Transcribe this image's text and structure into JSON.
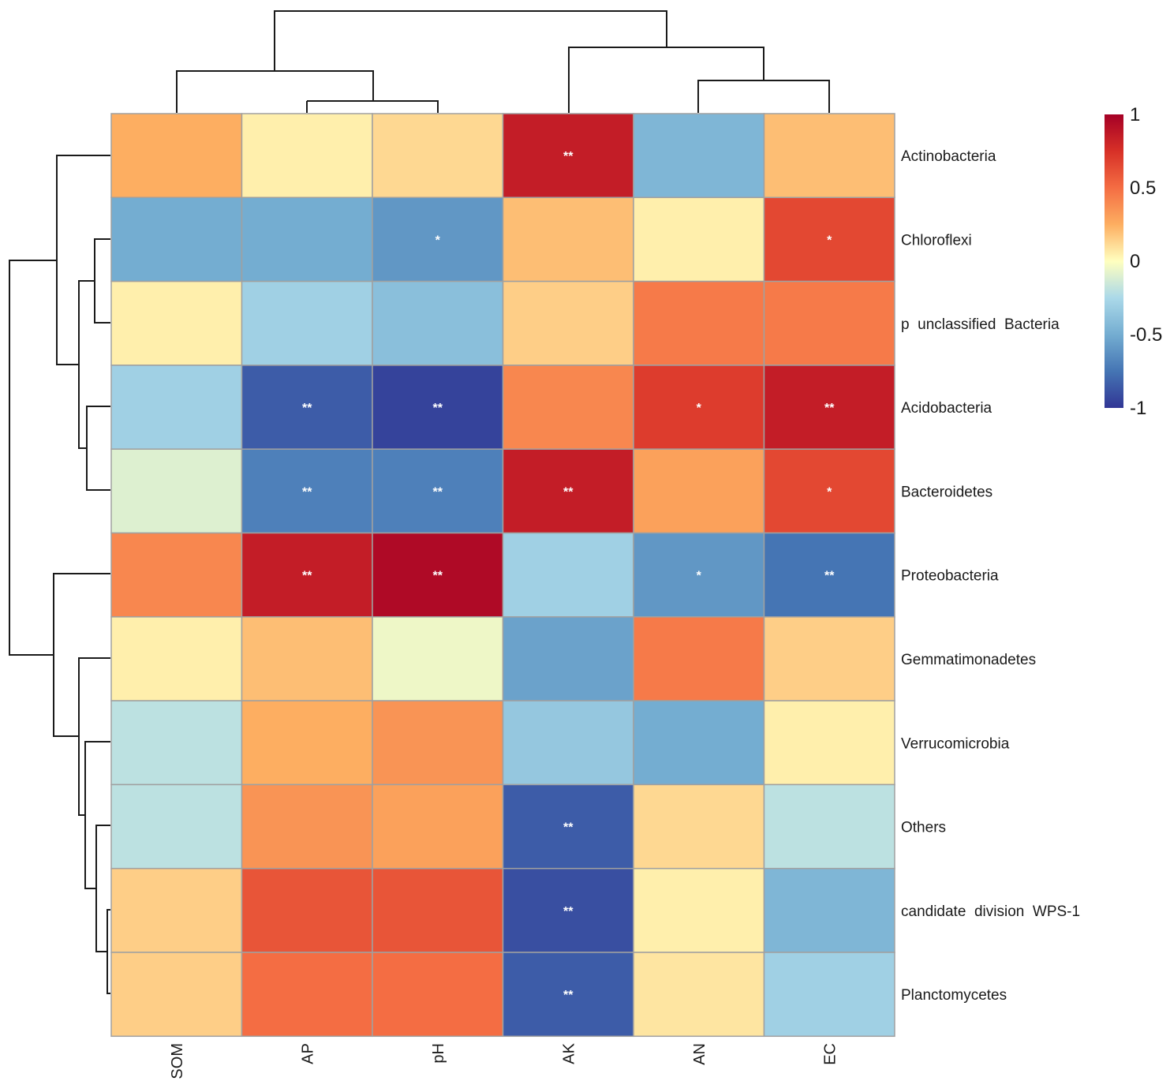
{
  "chart_data": {
    "type": "heatmap",
    "columns": [
      "SOM",
      "AP",
      "pH",
      "AK",
      "AN",
      "EC"
    ],
    "rows": [
      "Actinobacteria",
      "Chloroflexi",
      "p  unclassified  Bacteria",
      "Acidobacteria",
      "Bacteroidetes",
      "Proteobacteria",
      "Gemmatimonadetes",
      "Verrucomicrobia",
      "Others",
      "candidate  division  WPS-1",
      "Planctomycetes"
    ],
    "values": [
      [
        0.25,
        0.05,
        0.12,
        0.85,
        -0.45,
        0.2
      ],
      [
        -0.5,
        -0.5,
        -0.6,
        0.2,
        0.05,
        0.65
      ],
      [
        0.05,
        -0.3,
        -0.4,
        0.15,
        0.45,
        0.45
      ],
      [
        -0.3,
        -0.85,
        -0.95,
        0.4,
        0.7,
        0.85
      ],
      [
        -0.1,
        -0.7,
        -0.7,
        0.85,
        0.3,
        0.65
      ],
      [
        0.4,
        0.85,
        0.95,
        -0.3,
        -0.6,
        -0.75
      ],
      [
        0.05,
        0.2,
        -0.05,
        -0.55,
        0.45,
        0.15
      ],
      [
        -0.2,
        0.25,
        0.35,
        -0.35,
        -0.5,
        0.05
      ],
      [
        -0.2,
        0.35,
        0.3,
        -0.85,
        0.12,
        -0.2
      ],
      [
        0.15,
        0.6,
        0.6,
        -0.9,
        0.05,
        -0.45
      ],
      [
        0.15,
        0.5,
        0.5,
        -0.85,
        0.08,
        -0.3
      ]
    ],
    "significance": [
      [
        "",
        "",
        "",
        "**",
        "",
        ""
      ],
      [
        "",
        "",
        "*",
        "",
        "",
        "*"
      ],
      [
        "",
        "",
        "",
        "",
        "",
        ""
      ],
      [
        "",
        "**",
        "**",
        "",
        "*",
        "**"
      ],
      [
        "",
        "**",
        "**",
        "**",
        "",
        "*"
      ],
      [
        "",
        "**",
        "**",
        "",
        "*",
        "**"
      ],
      [
        "",
        "",
        "",
        "",
        "",
        ""
      ],
      [
        "",
        "",
        "",
        "",
        "",
        ""
      ],
      [
        "",
        "",
        "",
        "**",
        "",
        ""
      ],
      [
        "",
        "",
        "",
        "**",
        "",
        ""
      ],
      [
        "",
        "",
        "",
        "**",
        "",
        ""
      ]
    ],
    "colorbar": {
      "range": [
        -1,
        1
      ],
      "tick_values": [
        1,
        0.5,
        0,
        -0.5,
        -1
      ],
      "tick_labels": [
        "1",
        "0.5",
        "0",
        "-0.5",
        "-1"
      ],
      "colors": {
        "neg1": "#313695",
        "neg075": "#4575b4",
        "neg05": "#74add1",
        "neg025": "#abd9e9",
        "zero": "#ffffbf",
        "pos025": "#fdae61",
        "pos05": "#f46d43",
        "pos075": "#d73027",
        "pos1": "#a50026"
      }
    },
    "column_dendrogram": "((SOM,(AP,pH)),(AK,(AN,EC)))",
    "row_dendrogram": "((Actinobacteria,((Chloroflexi,p unclassified Bacteria),(Acidobacteria,Bacteroidetes))),(Proteobacteria,(Gemmatimonadetes,(Verrucomicrobia,(Others,(candidate division WPS-1,Planctomycetes))))))"
  }
}
